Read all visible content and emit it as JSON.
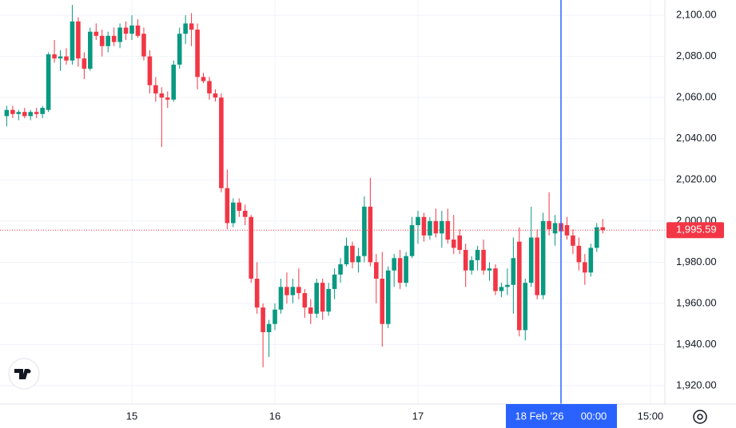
{
  "chart_data": {
    "type": "candlestick",
    "categories": [
      null,
      null,
      null,
      null,
      null,
      null,
      null,
      null,
      null,
      null,
      null,
      null,
      null,
      null,
      null,
      null,
      null,
      null,
      null,
      null,
      null,
      "15",
      null,
      null,
      null,
      null,
      null,
      null,
      null,
      null,
      null,
      null,
      null,
      null,
      null,
      null,
      null,
      null,
      null,
      null,
      null,
      null,
      null,
      null,
      null,
      "16",
      null,
      null,
      null,
      null,
      null,
      null,
      null,
      null,
      null,
      null,
      null,
      null,
      null,
      null,
      null,
      null,
      null,
      null,
      null,
      null,
      null,
      null,
      null,
      "17",
      null,
      null,
      null,
      null,
      null,
      null,
      null,
      null,
      null,
      null,
      null,
      null,
      null,
      null,
      null,
      null,
      null,
      null,
      null,
      null,
      null,
      null,
      null,
      null,
      null,
      null,
      null,
      null,
      null,
      null,
      null,
      null,
      null,
      null,
      null,
      null,
      null,
      null,
      "15:00",
      null,
      null
    ],
    "open": [
      2051,
      2054,
      2052,
      2053,
      2051,
      2053,
      2052,
      2054,
      2081,
      2079,
      2080,
      2078,
      2097,
      2079,
      2074,
      2092,
      2090,
      2085,
      2090,
      2087,
      2094,
      2091,
      2095,
      2091,
      2080,
      2066,
      2062,
      2060,
      2059,
      2076,
      2091,
      2096,
      2093,
      2070,
      2068,
      2062,
      2060,
      2016,
      1999,
      2009,
      2005,
      2002,
      1972,
      1958,
      1946,
      1950,
      1957,
      1968,
      1964,
      1968,
      1965,
      1958,
      1955,
      1970,
      1956,
      1967,
      1974,
      1979,
      1988,
      1980,
      1983,
      2007,
      1980,
      1972,
      1950,
      1976,
      1982,
      1970,
      1983,
      1998,
      2002,
      1993,
      2000,
      1994,
      2000,
      1991,
      1993,
      1986,
      1976,
      1981,
      1986,
      1976,
      1977,
      1966,
      1968,
      1969,
      1990,
      1947,
      1970,
      1992,
      1964,
      2000,
      1994,
      1999,
      1998,
      1993,
      1988,
      1980,
      1975,
      1987,
      1997,
      null,
      null,
      null,
      null,
      null,
      null,
      null,
      null,
      null,
      null
    ],
    "high": [
      2056,
      2056,
      2054,
      2055,
      2054,
      2055,
      2056,
      2082,
      2088,
      2083,
      2084,
      2105,
      2099,
      2082,
      2094,
      2096,
      2093,
      2092,
      2094,
      2096,
      2097,
      2100,
      2098,
      2094,
      2083,
      2070,
      2065,
      2063,
      2078,
      2094,
      2100,
      2101,
      2096,
      2072,
      2070,
      2064,
      2062,
      2025,
      2011,
      2011,
      2008,
      2003,
      1980,
      1960,
      1952,
      1960,
      1972,
      1975,
      1972,
      1977,
      1967,
      1962,
      1972,
      1972,
      1970,
      1977,
      1982,
      1992,
      1990,
      1987,
      2012,
      2021,
      1984,
      1985,
      1978,
      1984,
      1986,
      1985,
      2002,
      2005,
      2004,
      2002,
      2006,
      2005,
      2006,
      2003,
      1996,
      1989,
      1983,
      1988,
      1991,
      1980,
      1979,
      1970,
      1977,
      1992,
      1997,
      1972,
      2007,
      1996,
      2004,
      2014,
      2003,
      2003,
      2002,
      1996,
      1992,
      1984,
      1989,
      1999,
      2001,
      null,
      null,
      null,
      null,
      null,
      null,
      null,
      null,
      null,
      null
    ],
    "low": [
      2046,
      2050,
      2049,
      2050,
      2049,
      2050,
      2050,
      2053,
      2077,
      2073,
      2076,
      2076,
      2075,
      2069,
      2073,
      2088,
      2080,
      2082,
      2085,
      2084,
      2088,
      2088,
      2089,
      2078,
      2062,
      2058,
      2036,
      2055,
      2058,
      2074,
      2086,
      2085,
      2064,
      2067,
      2059,
      2058,
      2014,
      1996,
      1997,
      2002,
      1998,
      1970,
      1955,
      1929,
      1934,
      1947,
      1955,
      1960,
      1960,
      1962,
      1953,
      1950,
      1953,
      1952,
      1954,
      1962,
      1970,
      1978,
      1977,
      1975,
      1980,
      1978,
      1960,
      1939,
      1948,
      1968,
      1967,
      1968,
      1982,
      1989,
      1990,
      1991,
      1992,
      1987,
      1989,
      1984,
      1984,
      1968,
      1974,
      1976,
      1974,
      1971,
      1964,
      1963,
      1964,
      1955,
      1944,
      1942,
      1968,
      1962,
      1962,
      1993,
      1988,
      1992,
      1991,
      1984,
      1976,
      1969,
      1973,
      1985,
      1994,
      null,
      null,
      null,
      null,
      null,
      null,
      null,
      null,
      null,
      null
    ],
    "close": [
      2054,
      2052,
      2053,
      2051,
      2053,
      2052,
      2055,
      2081,
      2079,
      2080,
      2078,
      2097,
      2079,
      2074,
      2092,
      2090,
      2085,
      2090,
      2087,
      2094,
      2091,
      2095,
      2090,
      2080,
      2066,
      2062,
      2060,
      2059,
      2076,
      2091,
      2096,
      2093,
      2070,
      2068,
      2062,
      2060,
      2016,
      1999,
      2009,
      2005,
      2002,
      1972,
      1958,
      1946,
      1950,
      1957,
      1968,
      1964,
      1968,
      1965,
      1958,
      1955,
      1970,
      1956,
      1967,
      1974,
      1979,
      1988,
      1980,
      1983,
      2007,
      1980,
      1972,
      1950,
      1976,
      1982,
      1970,
      1983,
      1998,
      2002,
      1993,
      2000,
      1994,
      2000,
      1991,
      1987,
      1986,
      1976,
      1981,
      1986,
      1976,
      1977,
      1966,
      1968,
      1969,
      1982,
      1947,
      1970,
      1992,
      1964,
      2000,
      1996,
      1999,
      1995,
      1993,
      1988,
      1980,
      1975,
      1987,
      1997,
      1995.59,
      null,
      null,
      null,
      null,
      null,
      null,
      null,
      null,
      null,
      null
    ],
    "up_color": "#089981",
    "down_color": "#f23645",
    "ylim": [
      1911.1,
      2107.4
    ],
    "yticks": [
      {
        "value": 1920,
        "label": "1,920.00"
      },
      {
        "value": 1940,
        "label": "1,940.00"
      },
      {
        "value": 1960,
        "label": "1,960.00"
      },
      {
        "value": 1980,
        "label": "1,980.00"
      },
      {
        "value": 2000,
        "label": "2,000.00"
      },
      {
        "value": 2020,
        "label": "2,020.00"
      },
      {
        "value": 2040,
        "label": "2,040.00"
      },
      {
        "value": 2060,
        "label": "2,060.00"
      },
      {
        "value": 2080,
        "label": "2,080.00"
      },
      {
        "value": 2100,
        "label": "2,100.00"
      }
    ],
    "grid": true,
    "last_price": {
      "value": 1995.59,
      "label": "1,995.59"
    },
    "crosshair": {
      "date": "18 Feb '26",
      "time": "00:00",
      "color": "#2962ff"
    }
  }
}
